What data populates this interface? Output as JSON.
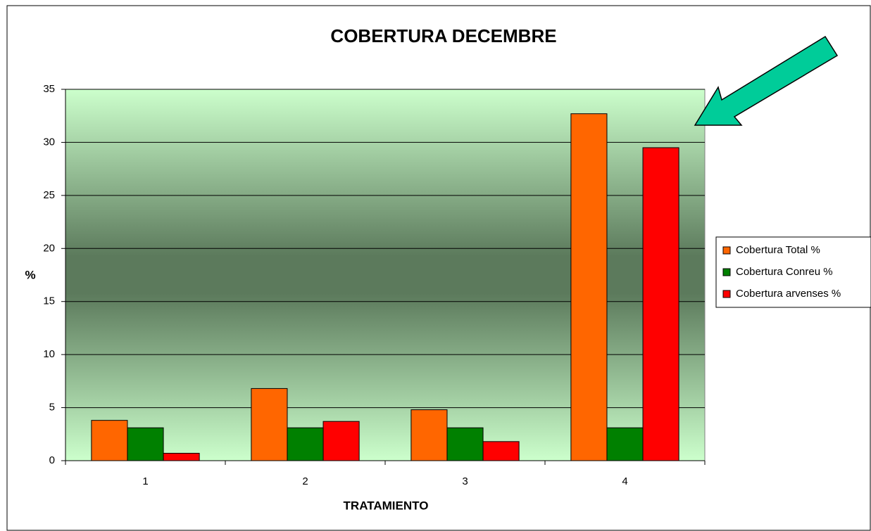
{
  "chart_data": {
    "type": "bar",
    "title": "COBERTURA DECEMBRE",
    "x_label": "TRATAMIENTO",
    "y_label": "%",
    "categories": [
      "1",
      "2",
      "3",
      "4"
    ],
    "series": [
      {
        "name": "Cobertura Total %",
        "color": "#ff6600",
        "values": [
          3.8,
          6.8,
          4.8,
          32.7
        ]
      },
      {
        "name": "Cobertura Conreu %",
        "color": "#008000",
        "values": [
          3.1,
          3.1,
          3.1,
          3.1
        ]
      },
      {
        "name": "Cobertura arvenses %",
        "color": "#ff0000",
        "values": [
          0.7,
          3.7,
          1.8,
          29.5
        ]
      }
    ],
    "ylim": [
      0,
      35
    ],
    "yticks": [
      0,
      5,
      10,
      15,
      20,
      25,
      30,
      35
    ],
    "grid": true,
    "legend": "right"
  }
}
